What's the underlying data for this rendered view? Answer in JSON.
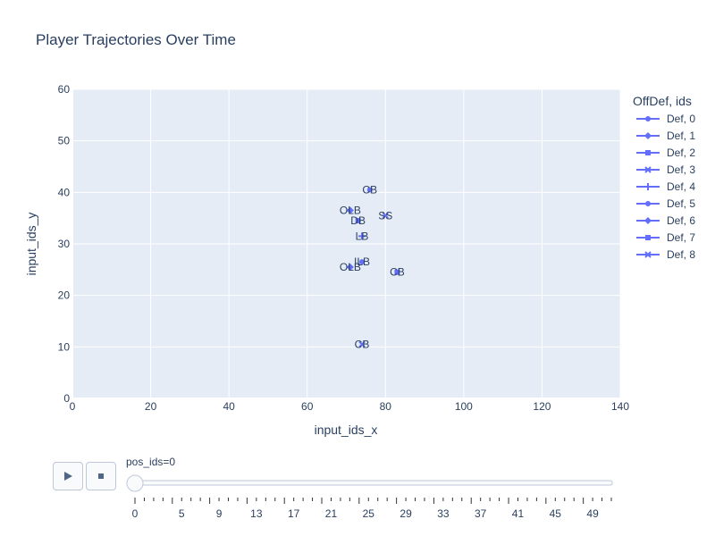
{
  "title": "Player Trajectories Over Time",
  "legend": {
    "title": "OffDef, ids",
    "items": [
      "Def, 0",
      "Def, 1",
      "Def, 2",
      "Def, 3",
      "Def, 4",
      "Def, 5",
      "Def, 6",
      "Def, 7",
      "Def, 8"
    ],
    "symbols": [
      "circle",
      "diamond",
      "square",
      "x",
      "cross",
      "circle",
      "diamond",
      "square",
      "x"
    ],
    "color": "#636efa"
  },
  "slider": {
    "label": "pos_ids=0",
    "ticks": [
      "0",
      "5",
      "9",
      "13",
      "17",
      "21",
      "25",
      "29",
      "33",
      "37",
      "41",
      "45",
      "49"
    ],
    "current": 0
  },
  "chart_data": {
    "type": "scatter",
    "title": "Player Trajectories Over Time",
    "xlabel": "input_ids_x",
    "ylabel": "input_ids_y",
    "xlim": [
      0,
      140
    ],
    "ylim": [
      0,
      60
    ],
    "xticks": [
      0,
      20,
      40,
      60,
      80,
      100,
      120,
      140
    ],
    "yticks": [
      0,
      10,
      20,
      30,
      40,
      50,
      60
    ],
    "grid": true,
    "legend_position": "right",
    "series": [
      {
        "name": "Def, 0",
        "x": [
          76
        ],
        "y": [
          40.5
        ],
        "label": "CB"
      },
      {
        "name": "Def, 1",
        "x": [
          71
        ],
        "y": [
          36.5
        ],
        "label": "OLB"
      },
      {
        "name": "Def, 2",
        "x": [
          73
        ],
        "y": [
          34.5
        ],
        "label": "DB"
      },
      {
        "name": "Def, 3",
        "x": [
          80
        ],
        "y": [
          35.5
        ],
        "label": "SS"
      },
      {
        "name": "Def, 4",
        "x": [
          74
        ],
        "y": [
          31.5
        ],
        "label": "LB"
      },
      {
        "name": "Def, 5",
        "x": [
          74
        ],
        "y": [
          26.5
        ],
        "label": "ILB"
      },
      {
        "name": "Def, 6",
        "x": [
          71
        ],
        "y": [
          25.5
        ],
        "label": "OLB"
      },
      {
        "name": "Def, 7",
        "x": [
          83
        ],
        "y": [
          24.5
        ],
        "label": "CB"
      },
      {
        "name": "Def, 8",
        "x": [
          74
        ],
        "y": [
          10.5
        ],
        "label": "CB"
      }
    ]
  }
}
